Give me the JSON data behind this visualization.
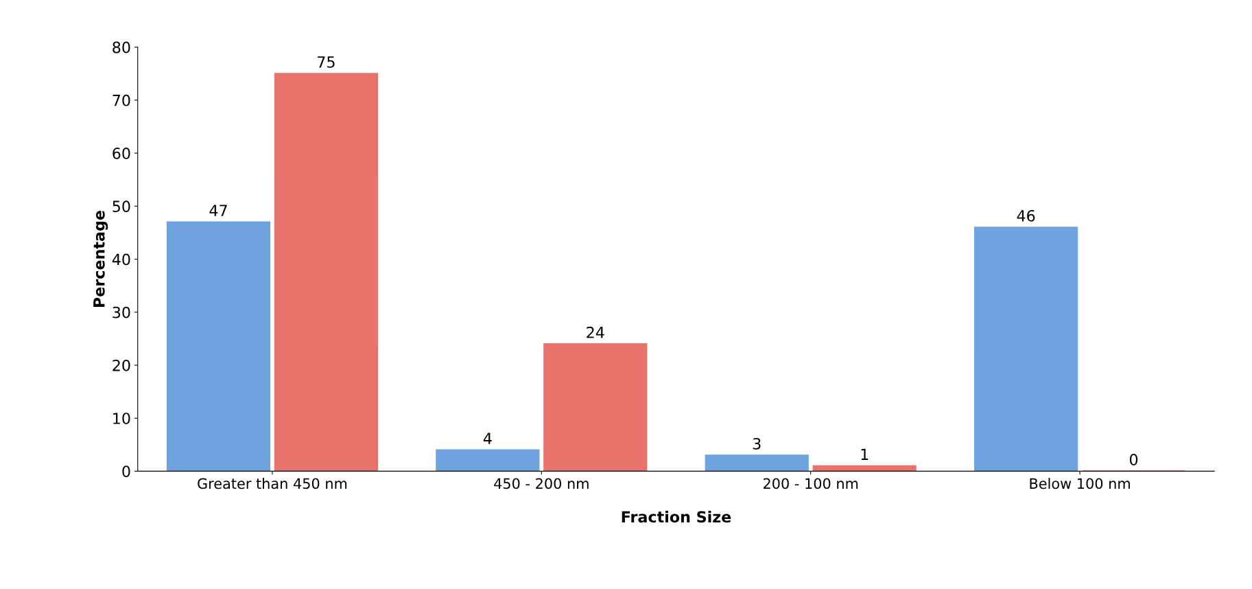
{
  "chart_data": {
    "type": "bar",
    "xlabel": "Fraction Size",
    "ylabel": "Percentage",
    "categories": [
      "Greater than 450 nm",
      "450 - 200 nm",
      "200 - 100 nm",
      "Below 100 nm"
    ],
    "series": [
      {
        "color": "#6fa3e0",
        "values": [
          47,
          4,
          3,
          46
        ]
      },
      {
        "color": "#e8736b",
        "values": [
          75,
          24,
          1,
          0
        ]
      }
    ],
    "ylim": [
      0,
      80
    ],
    "yticks": [
      0,
      10,
      20,
      30,
      40,
      50,
      60,
      70,
      80
    ],
    "data_labels": true,
    "grid": false
  }
}
